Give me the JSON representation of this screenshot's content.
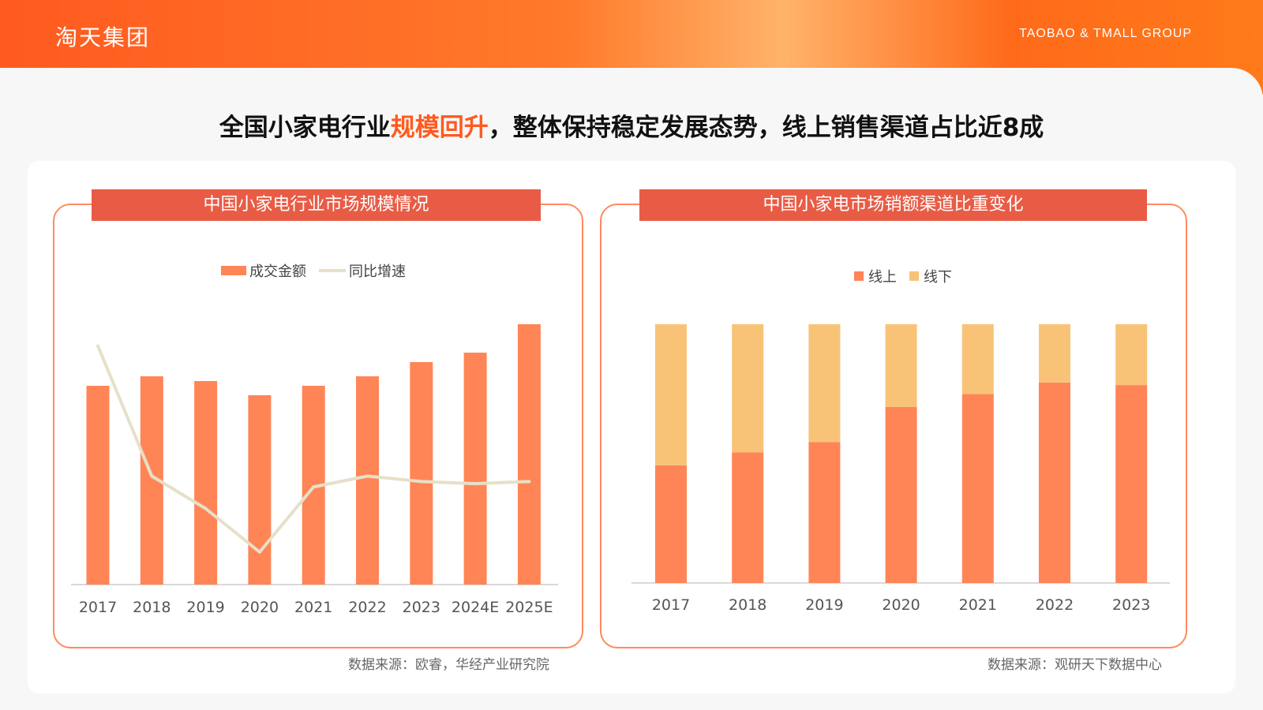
{
  "header": {
    "logo_text": "淘天集团",
    "group_name": "TAOBAO & TMALL GROUP",
    "brand_color": "#ff5a1f"
  },
  "headline": {
    "part1": "全国小家电行业",
    "highlight": "规模回升",
    "part2": "，整体保持稳定发展态势，线上销售渠道占比近8成"
  },
  "left_chart": {
    "title": "中国小家电行业市场规模情况",
    "legend": {
      "bar": "成交金额",
      "line": "同比增速"
    },
    "source": "数据来源：欧睿，华经产业研究院"
  },
  "right_chart": {
    "title": "中国小家电市场销额渠道比重变化",
    "legend": {
      "online": "线上",
      "offline": "线下"
    },
    "source": "数据来源：观研天下数据中心"
  },
  "chart_data": [
    {
      "type": "bar",
      "title": "中国小家电行业市场规模情况",
      "categories": [
        "2017",
        "2018",
        "2019",
        "2020",
        "2021",
        "2022",
        "2023",
        "2024E",
        "2025E"
      ],
      "series": [
        {
          "name": "成交金额",
          "kind": "bar",
          "color": "#ff8557",
          "values": [
            84,
            88,
            86,
            80,
            84,
            88,
            94,
            98,
            110
          ]
        },
        {
          "name": "同比增速",
          "kind": "line",
          "color": "#e6e0c8",
          "values": [
            22,
            10,
            7,
            3,
            9,
            10,
            9.5,
            9.3,
            9.5
          ]
        }
      ],
      "bar_ylim": [
        0,
        110
      ],
      "line_ylim": [
        0,
        24
      ],
      "grid": false,
      "legend_position": "top-center"
    },
    {
      "type": "bar",
      "stacked": true,
      "title": "中国小家电市场销额渠道比重变化",
      "categories": [
        "2017",
        "2018",
        "2019",
        "2020",
        "2021",
        "2022",
        "2023"
      ],
      "series": [
        {
          "name": "线上",
          "color": "#ff8557",
          "values": [
            45.5,
            50.5,
            54.5,
            68,
            73,
            77.5,
            76.5
          ]
        },
        {
          "name": "线下",
          "color": "#f8c377",
          "values": [
            54.5,
            49.5,
            45.5,
            32,
            27,
            22.5,
            23.5
          ]
        }
      ],
      "ylim": [
        0,
        100
      ],
      "grid": false,
      "legend_position": "top-center"
    }
  ]
}
